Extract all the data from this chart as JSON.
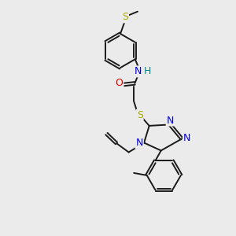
{
  "bg_color": "#ebebeb",
  "bond_color": "#1a1a1a",
  "colors": {
    "N": "#0000ee",
    "O": "#dd0000",
    "S": "#aaaa00",
    "H": "#008888",
    "C": "#1a1a1a"
  },
  "figsize": [
    3.0,
    3.0
  ],
  "dpi": 100,
  "xlim": [
    0,
    10
  ],
  "ylim": [
    0,
    10
  ]
}
